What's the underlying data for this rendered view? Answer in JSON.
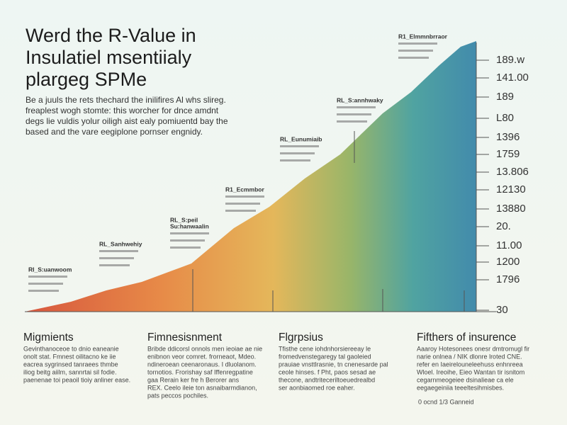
{
  "header": {
    "title": [
      "Werd the R-Value in",
      "Insulatiel msentiialy",
      "plargeg SPMe"
    ],
    "intro": [
      "Be a juuls the rets thechard the inilifires Al whs slireg.",
      "freaplest wogh stomte: this worcher for dnce amdnt",
      "degs lie vuldis yolur oiligh aist ealy pomiuentd bay the",
      "based and the vare eegiplone pornser engnidy."
    ]
  },
  "axis_labels": [
    "189.w",
    "141.00",
    "189",
    "L80",
    "1396",
    "1759",
    "13.806",
    "12130",
    "13880",
    "20.",
    "11.00",
    "1200",
    "1796",
    "30"
  ],
  "annotations": [
    "RI_S:uanwoom",
    "RL_Sanhwehiy",
    "RL_S:peil",
    "Su:hanwaalin",
    "R1_Ecmmbor",
    "RL_Eunumiaib",
    "RL_S:annhwaky",
    "R1_Elmmnbrraor"
  ],
  "columns": [
    {
      "heading": "Migmients",
      "lines": [
        "Gevinthanoceoe to dnio eaneanie",
        "onolt stat. Fmnest oilitacno ke iie",
        "eacrea sygrinsed tanraees thmbe",
        "iliog beitg aiilm, sannrtai sil fodie.",
        "paenenae toi peaoil tioiy anliner ease."
      ]
    },
    {
      "heading": "Fimnesisnment",
      "lines": [
        "Bribde ddicorsl onnols men ieoiae ae nie",
        "enibnon veor comret. frorneaot, Mdeo.",
        "ndineroean ceenaronaus. I dluolanom.",
        "tornotios. Frorishay saf Iffenregpatine",
        "gaa Rerain ker fre h Berorer ans",
        "REX. Ceelo ileie ton asnaibarmdianon,",
        "pats peccos pochiles."
      ]
    },
    {
      "heading": "Flgrpsius",
      "lines": [
        "Tfisthe cene iohdnhorsiereeay le",
        "fromedvenstegaregy tal gaoleied",
        "prauiae vnsttlrasnie, tn cnenesarde pal",
        "ceole hinses. f Pht, paos sesad ae",
        "thecone, andtriteceriltoeuedrealbd",
        "ser aonbiaomed roe eaher."
      ]
    },
    {
      "heading": "Fifthers of insurence",
      "lines": [
        "Aaaroy Hotesonees onesr dmtromugl fir",
        "narie onlnea / NIK dlonre lroted CNE.",
        "refer en Iaeirelouneleehuss enhnreea",
        "Wloel. Ireoihe, Eieo Wantan tir isnitom",
        "cegarnmeogeiee dsinalieae ca ele",
        "eegaegeiniia teeeltesihmisbes."
      ]
    }
  ],
  "footer": "0 ocnd 1/3 Ganneid"
}
